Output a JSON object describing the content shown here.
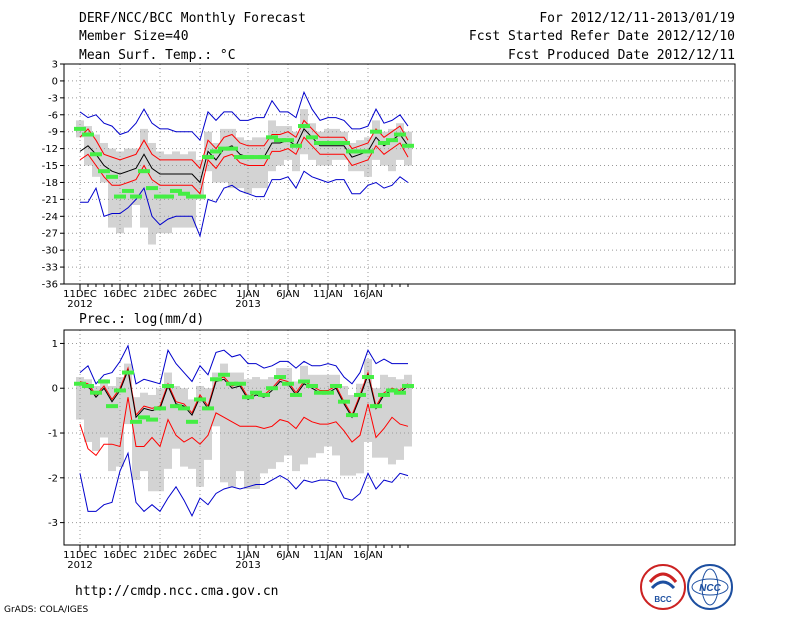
{
  "header": {
    "title": "DERF/NCC/BCC Monthly Forecast",
    "member_size": "Member Size=40",
    "panel1_label": "Mean Surf. Temp.: °C",
    "forecast_range": "For 2012/12/11-2013/01/19",
    "started": "Fcst Started Refer Date 2012/12/10",
    "produced": "Fcst Produced Date 2012/12/11"
  },
  "footer": {
    "url": "http://cmdp.ncc.cma.gov.cn",
    "credit": "GrADS: COLA/IGES",
    "logo1_text": "BCC",
    "logo2_text": "NCC"
  },
  "colors": {
    "mean": "#000000",
    "spread_inner": "#ff0000",
    "spread_outer": "#0000cc",
    "box": "#d3d3d3",
    "observed": "#44ee44",
    "grid": "#999999"
  },
  "chart_data": [
    {
      "type": "line",
      "title": "Mean Surf. Temp.: °C",
      "ylabel": "°C",
      "ylim": [
        -36,
        3
      ],
      "yticks": [
        3,
        0,
        -3,
        -6,
        -9,
        -12,
        -15,
        -18,
        -21,
        -24,
        -27,
        -30,
        -33,
        -36
      ],
      "ytick_labels": [
        "3",
        "0",
        "-3",
        "-6",
        "-9",
        "-12",
        "-15",
        "-18",
        "-21",
        "-24",
        "-27",
        "-30",
        "-33",
        "-36"
      ],
      "days": 40,
      "x_tick_labels": [
        {
          "day": 0,
          "label": "11DEC",
          "sub": "2012"
        },
        {
          "day": 5,
          "label": "16DEC",
          "sub": ""
        },
        {
          "day": 10,
          "label": "21DEC",
          "sub": ""
        },
        {
          "day": 15,
          "label": "26DEC",
          "sub": ""
        },
        {
          "day": 21,
          "label": "1JAN",
          "sub": "2013"
        },
        {
          "day": 26,
          "label": "6JAN",
          "sub": ""
        },
        {
          "day": 31,
          "label": "11JAN",
          "sub": ""
        },
        {
          "day": 36,
          "label": "16JAN",
          "sub": ""
        }
      ],
      "series": [
        {
          "name": "ensemble-mean",
          "values": [
            -12.5,
            -11.5,
            -13,
            -15,
            -16,
            -16.5,
            -16,
            -15.5,
            -13,
            -15.5,
            -16.5,
            -16.5,
            -16.5,
            -16.5,
            -16.5,
            -18,
            -12.5,
            -14,
            -12,
            -11.5,
            -13,
            -13.5,
            -13.5,
            -13.5,
            -11,
            -11,
            -10.5,
            -11.5,
            -8.5,
            -10,
            -11.5,
            -11.5,
            -11.5,
            -11.5,
            -13.5,
            -13,
            -12.5,
            -10,
            -11.5,
            -10.5,
            -9.5,
            -11.5
          ]
        },
        {
          "name": "upper-inner",
          "values": [
            -10,
            -8.5,
            -10.5,
            -13,
            -13.5,
            -14,
            -13.5,
            -13,
            -10.5,
            -13,
            -14,
            -14,
            -14,
            -14,
            -14,
            -15.5,
            -10.5,
            -12,
            -10,
            -9.5,
            -11,
            -11.5,
            -11.5,
            -11.5,
            -9.5,
            -9.5,
            -9,
            -10,
            -7,
            -8.5,
            -10,
            -10,
            -10,
            -10,
            -12,
            -11.5,
            -11,
            -8.5,
            -10,
            -9,
            -8,
            -10.5
          ]
        },
        {
          "name": "lower-inner",
          "values": [
            -14,
            -13,
            -15,
            -17,
            -18.5,
            -18.5,
            -18,
            -17.5,
            -15,
            -17.5,
            -18.5,
            -18.5,
            -18.5,
            -18.5,
            -18.5,
            -20,
            -14,
            -15.5,
            -13.5,
            -13,
            -14.5,
            -15,
            -15,
            -15,
            -12.5,
            -12.5,
            -12,
            -13,
            -10,
            -11.5,
            -13,
            -13,
            -13,
            -13,
            -15,
            -14.5,
            -14,
            -11.5,
            -13,
            -12,
            -11,
            -13.5
          ]
        },
        {
          "name": "upper-outer",
          "values": [
            -5.5,
            -6.5,
            -6,
            -7.5,
            -8,
            -9.5,
            -9,
            -7.5,
            -5,
            -7.5,
            -8.5,
            -8.5,
            -9,
            -9,
            -9,
            -10.5,
            -5.5,
            -7,
            -5.5,
            -5.5,
            -7,
            -7,
            -6.5,
            -6.5,
            -3.5,
            -5.5,
            -5.5,
            -6.5,
            -2,
            -5,
            -7,
            -6.5,
            -6.5,
            -7,
            -8.5,
            -8.5,
            -8,
            -5,
            -7.5,
            -7,
            -6,
            -8
          ]
        },
        {
          "name": "lower-outer",
          "values": [
            -21.5,
            -21.5,
            -19,
            -24,
            -23.5,
            -23.5,
            -22.5,
            -21,
            -19,
            -24,
            -25.5,
            -24.5,
            -24,
            -24,
            -24,
            -27.5,
            -21,
            -21.5,
            -19,
            -18.5,
            -19.5,
            -20,
            -20.5,
            -20.5,
            -17.5,
            -17.5,
            -17,
            -19,
            -16,
            -17,
            -17.5,
            -18,
            -17.5,
            -17.5,
            -20,
            -20,
            -18.5,
            -18,
            -19,
            -18.5,
            -17,
            -18
          ]
        },
        {
          "name": "box-top",
          "values": [
            -7,
            -8,
            -9.5,
            -11,
            -12,
            -12.5,
            -12,
            -12,
            -8.5,
            -11,
            -12.5,
            -13,
            -12.5,
            -13,
            -12.5,
            -14,
            -9,
            -11,
            -8.5,
            -8.5,
            -10,
            -10.5,
            -10,
            -10,
            -7,
            -8,
            -8,
            -9,
            -5,
            -7.5,
            -9,
            -8.5,
            -8.5,
            -9,
            -11,
            -10.5,
            -10,
            -7,
            -9,
            -8.5,
            -7.5,
            -9
          ]
        },
        {
          "name": "box-bottom",
          "values": [
            -10,
            -15,
            -17,
            -18,
            -26,
            -27,
            -26,
            -22,
            -26,
            -29,
            -27,
            -27,
            -26,
            -26,
            -26,
            -21,
            -16,
            -18,
            -18,
            -19,
            -19,
            -20,
            -19,
            -19,
            -16,
            -15,
            -14,
            -16,
            -13,
            -14,
            -15,
            -15,
            -14,
            -14,
            -16,
            -16,
            -17,
            -14,
            -15,
            -16,
            -14,
            -15
          ]
        },
        {
          "name": "observed",
          "values": [
            -8.5,
            -9.5,
            -13,
            -16,
            -17,
            -20.5,
            -19.5,
            -20.5,
            -16,
            -19,
            -20.5,
            -20.5,
            -19.5,
            -20,
            -20.5,
            -20.5,
            -13.5,
            -12.5,
            -12,
            -12,
            -13.5,
            -13.5,
            -13.5,
            -13.5,
            -10,
            -10.5,
            -10.5,
            -11.5,
            -8,
            -10,
            -11,
            -11,
            -11,
            -11,
            -12.5,
            -12.5,
            -12.5,
            -9,
            -11,
            -10.5,
            -9.5,
            -11.5
          ]
        }
      ]
    },
    {
      "type": "line",
      "title": "Prec.: log(mm/d)",
      "ylabel": "log(mm/d)",
      "ylim": [
        -3.5,
        1.3
      ],
      "yticks": [
        1,
        0,
        -1,
        -2,
        -3
      ],
      "ytick_labels": [
        "1",
        "0",
        "-1",
        "-2",
        "-3"
      ],
      "days": 40,
      "x_tick_labels": [
        {
          "day": 0,
          "label": "11DEC",
          "sub": "2012"
        },
        {
          "day": 5,
          "label": "16DEC",
          "sub": ""
        },
        {
          "day": 10,
          "label": "21DEC",
          "sub": ""
        },
        {
          "day": 15,
          "label": "26DEC",
          "sub": ""
        },
        {
          "day": 21,
          "label": "1JAN",
          "sub": "2013"
        },
        {
          "day": 26,
          "label": "6JAN",
          "sub": ""
        },
        {
          "day": 31,
          "label": "11JAN",
          "sub": ""
        },
        {
          "day": 36,
          "label": "16JAN",
          "sub": ""
        }
      ],
      "series": [
        {
          "name": "ensemble-mean",
          "values": [
            0.1,
            0.05,
            -0.2,
            0,
            -0.3,
            -0.05,
            0.4,
            -0.65,
            -0.45,
            -0.5,
            -0.45,
            0.05,
            -0.35,
            -0.4,
            -0.6,
            -0.2,
            -0.45,
            0.15,
            0.2,
            0,
            0.05,
            -0.25,
            -0.15,
            -0.2,
            -0.05,
            0.15,
            0.1,
            -0.15,
            0.1,
            0,
            -0.1,
            -0.1,
            0,
            -0.35,
            -0.65,
            -0.2,
            0.3,
            -0.45,
            -0.15,
            -0.05,
            -0.1,
            0.05
          ]
        },
        {
          "name": "upper-inner",
          "values": [
            0.15,
            0.1,
            -0.15,
            0.05,
            -0.25,
            0,
            0.45,
            -0.6,
            -0.4,
            -0.45,
            -0.4,
            0.1,
            -0.3,
            -0.35,
            -0.55,
            -0.15,
            -0.4,
            0.2,
            0.25,
            0.05,
            0.1,
            -0.2,
            -0.1,
            -0.15,
            0,
            0.2,
            0.15,
            -0.1,
            0.15,
            0.05,
            -0.05,
            -0.05,
            0.05,
            -0.3,
            -0.6,
            -0.15,
            0.35,
            -0.4,
            -0.1,
            0,
            -0.05,
            0.1
          ]
        },
        {
          "name": "lower-inner",
          "values": [
            -0.8,
            -1.35,
            -1.5,
            -1.25,
            -1.25,
            -1.3,
            -0.2,
            -1.3,
            -1.3,
            -1.1,
            -1.3,
            -0.7,
            -1.05,
            -1.2,
            -1.1,
            -1.25,
            -1.05,
            -0.55,
            -0.65,
            -0.75,
            -0.85,
            -0.85,
            -0.85,
            -0.9,
            -0.85,
            -0.7,
            -0.75,
            -0.9,
            -0.65,
            -0.75,
            -0.8,
            -0.8,
            -0.75,
            -0.95,
            -1.2,
            -1.05,
            -0.35,
            -1.1,
            -0.9,
            -0.65,
            -0.8,
            -0.85
          ]
        },
        {
          "name": "upper-outer",
          "values": [
            0.35,
            0.5,
            0.1,
            0.3,
            0.35,
            0.6,
            0.95,
            0.1,
            0.2,
            0.15,
            0.1,
            0.85,
            0.55,
            0.35,
            0.15,
            0.5,
            0.3,
            0.8,
            0.85,
            0.7,
            0.75,
            0.55,
            0.55,
            0.45,
            0.5,
            0.6,
            0.6,
            0.45,
            0.6,
            0.5,
            0.5,
            0.55,
            0.5,
            0.25,
            0.1,
            0.35,
            0.85,
            0.55,
            0.65,
            0.55,
            0.55,
            0.55
          ]
        },
        {
          "name": "lower-outer",
          "values": [
            -1.9,
            -2.75,
            -2.75,
            -2.6,
            -2.55,
            -1.85,
            -1.45,
            -2.55,
            -2.75,
            -2.6,
            -2.75,
            -2.45,
            -2.2,
            -2.5,
            -2.85,
            -2.45,
            -2.6,
            -2.35,
            -2.25,
            -2.2,
            -2.25,
            -2.2,
            -2.15,
            -2.15,
            -2.05,
            -1.95,
            -2.05,
            -2.25,
            -2.05,
            -2.1,
            -2.05,
            -2.05,
            -2.1,
            -2.45,
            -2.5,
            -2.35,
            -1.9,
            -2.25,
            -2.05,
            -2.1,
            -1.9,
            -1.95
          ]
        },
        {
          "name": "box-top",
          "values": [
            0.25,
            0.2,
            0.05,
            0.2,
            0.05,
            0.25,
            0.55,
            -0.2,
            -0.1,
            -0.15,
            0,
            0.35,
            0.05,
            0,
            -0.25,
            0.05,
            0,
            0.35,
            0.55,
            0.35,
            0.35,
            0.2,
            0.25,
            0.2,
            0.25,
            0.45,
            0.45,
            0.15,
            0.5,
            0.3,
            0.3,
            0.3,
            0.3,
            0.05,
            -0.15,
            0.1,
            0.65,
            0,
            0.3,
            0.25,
            0.2,
            0.3
          ]
        },
        {
          "name": "box-bottom",
          "values": [
            -0.7,
            -1.2,
            -1.4,
            -1.1,
            -1.85,
            -1.75,
            -0.8,
            -2.05,
            -1.85,
            -2.3,
            -2.3,
            -1.8,
            -1.35,
            -1.75,
            -1.8,
            -2.2,
            -1.6,
            -0.85,
            -2.1,
            -2.2,
            -1.85,
            -2.25,
            -2.25,
            -1.9,
            -1.8,
            -1.65,
            -1.5,
            -1.85,
            -1.7,
            -1.55,
            -1.45,
            -1.3,
            -1.5,
            -1.95,
            -1.95,
            -1.9,
            -1.2,
            -1.55,
            -1.55,
            -1.7,
            -1.6,
            -1.3
          ]
        },
        {
          "name": "observed",
          "values": [
            0.1,
            0.05,
            -0.1,
            0.15,
            -0.4,
            -0.05,
            0.35,
            -0.75,
            -0.65,
            -0.7,
            -0.45,
            0.05,
            -0.4,
            -0.45,
            -0.75,
            -0.25,
            -0.45,
            0.2,
            0.3,
            0.1,
            0.1,
            -0.2,
            -0.1,
            -0.15,
            0,
            0.25,
            0.1,
            -0.15,
            0.15,
            0.05,
            -0.1,
            -0.1,
            0.05,
            -0.3,
            -0.6,
            -0.15,
            0.25,
            -0.4,
            -0.15,
            -0.05,
            -0.1,
            0.05
          ]
        }
      ]
    }
  ]
}
